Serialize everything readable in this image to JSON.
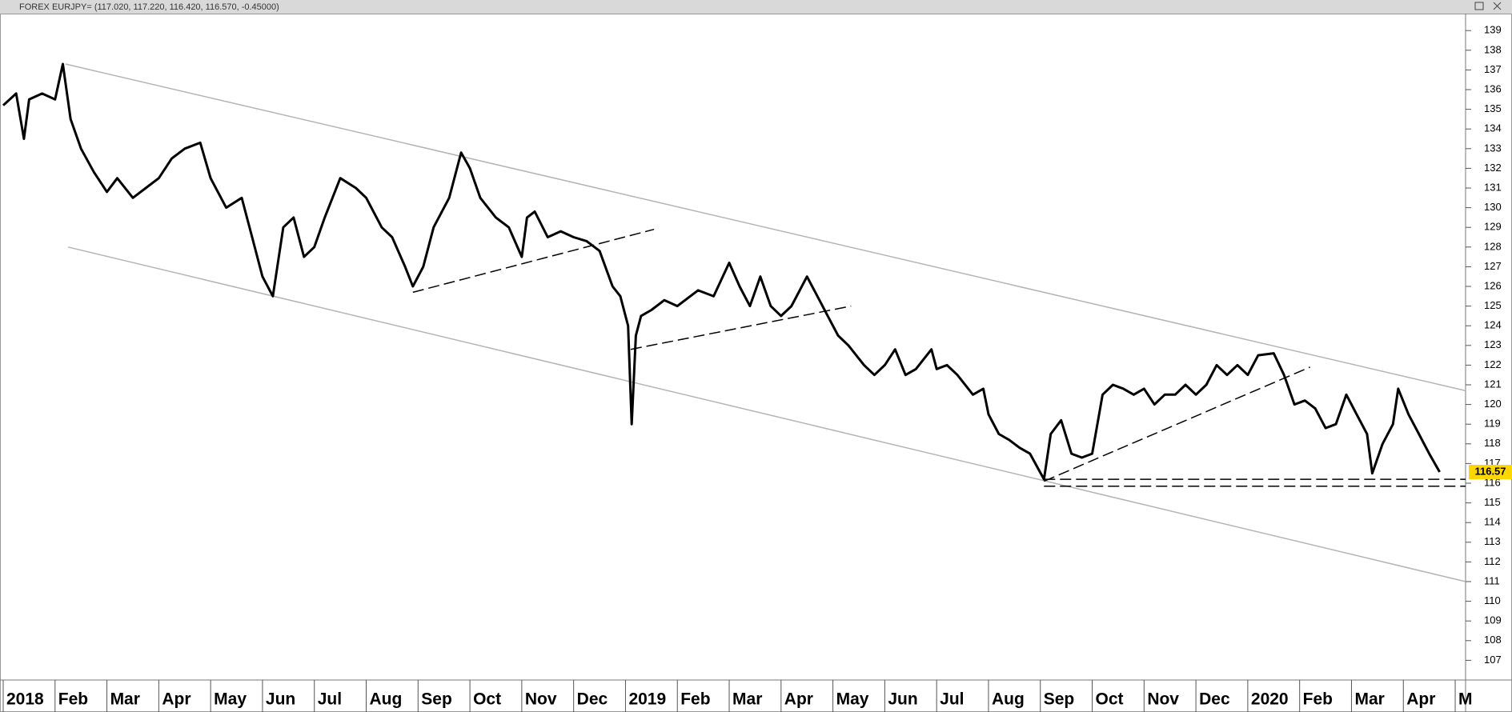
{
  "chart_data": {
    "type": "line",
    "title": "FOREX EURJPY= (117.020, 117.220, 116.420, 116.570, -0.45000)",
    "x": [
      0,
      0.25,
      0.4,
      0.5,
      0.75,
      1.0,
      1.15,
      1.3,
      1.5,
      1.75,
      2.0,
      2.2,
      2.5,
      2.75,
      3.0,
      3.25,
      3.5,
      3.8,
      4.0,
      4.3,
      4.6,
      4.8,
      5.0,
      5.2,
      5.4,
      5.6,
      5.8,
      6.0,
      6.2,
      6.5,
      6.8,
      7.0,
      7.3,
      7.5,
      7.75,
      7.9,
      8.1,
      8.3,
      8.5,
      8.6,
      8.83,
      9.0,
      9.2,
      9.5,
      9.75,
      10.0,
      10.1,
      10.25,
      10.5,
      10.75,
      11.0,
      11.25,
      11.5,
      11.75,
      11.9,
      12.05,
      12.12,
      12.2,
      12.3,
      12.5,
      12.75,
      13.0,
      13.4,
      13.7,
      14.0,
      14.2,
      14.4,
      14.6,
      14.8,
      15.0,
      15.2,
      15.5,
      15.7,
      15.9,
      16.1,
      16.3,
      16.6,
      16.8,
      17.0,
      17.2,
      17.4,
      17.6,
      17.9,
      18.0,
      18.2,
      18.4,
      18.7,
      18.9,
      19.0,
      19.2,
      19.4,
      19.6,
      19.8,
      20.07,
      20.2,
      20.4,
      20.6,
      20.8,
      21.0,
      21.2,
      21.4,
      21.6,
      21.8,
      22.0,
      22.2,
      22.4,
      22.6,
      22.8,
      23.0,
      23.2,
      23.4,
      23.6,
      23.8,
      24.0,
      24.2,
      24.5,
      24.7,
      24.9,
      25.1,
      25.3,
      25.5,
      25.7,
      25.9,
      26.1,
      26.3,
      26.4,
      26.6,
      26.8,
      26.9,
      27.1,
      27.3,
      27.5,
      27.7
    ],
    "series": [
      {
        "color": "#000000",
        "values": [
          135.2,
          135.8,
          133.5,
          135.5,
          135.8,
          135.5,
          137.3,
          134.5,
          133.0,
          131.8,
          130.8,
          131.5,
          130.5,
          131.0,
          131.5,
          132.5,
          133.0,
          133.3,
          131.5,
          130.0,
          130.5,
          128.5,
          126.5,
          125.5,
          129.0,
          129.5,
          127.5,
          128.0,
          129.5,
          131.5,
          131.0,
          130.5,
          129.0,
          128.5,
          127.0,
          126.0,
          127.0,
          129.0,
          130.0,
          130.5,
          132.8,
          132.0,
          130.5,
          129.5,
          129.0,
          127.5,
          129.5,
          129.8,
          128.5,
          128.8,
          128.5,
          128.3,
          127.8,
          126.0,
          125.5,
          124.0,
          119.0,
          123.5,
          124.5,
          124.8,
          125.3,
          125.0,
          125.8,
          125.5,
          127.2,
          126.0,
          125.0,
          126.5,
          125.0,
          124.5,
          125.0,
          126.5,
          125.5,
          124.5,
          123.5,
          123.0,
          122.0,
          121.5,
          122.0,
          122.8,
          121.5,
          121.8,
          122.8,
          121.8,
          122.0,
          121.5,
          120.5,
          120.8,
          119.5,
          118.5,
          118.2,
          117.8,
          117.5,
          116.2,
          118.5,
          119.2,
          117.5,
          117.3,
          117.5,
          120.5,
          121.0,
          120.8,
          120.5,
          120.8,
          120.0,
          120.5,
          120.5,
          121.0,
          120.5,
          121.0,
          122.0,
          121.5,
          122.0,
          121.5,
          122.5,
          122.6,
          121.5,
          120.0,
          120.2,
          119.8,
          118.8,
          119.0,
          120.5,
          119.5,
          118.5,
          116.5,
          118.0,
          119.0,
          120.8,
          119.5,
          118.5,
          117.5,
          116.57
        ]
      }
    ],
    "last_value_color": "#ffd700",
    "xlim": [
      0,
      28.2
    ],
    "xticks": [
      {
        "value": 0,
        "label": "2018"
      },
      {
        "value": 1,
        "label": "Feb"
      },
      {
        "value": 2,
        "label": "Mar"
      },
      {
        "value": 3,
        "label": "Apr"
      },
      {
        "value": 4,
        "label": "May"
      },
      {
        "value": 5,
        "label": "Jun"
      },
      {
        "value": 6,
        "label": "Jul"
      },
      {
        "value": 7,
        "label": "Aug"
      },
      {
        "value": 8,
        "label": "Sep"
      },
      {
        "value": 9,
        "label": "Oct"
      },
      {
        "value": 10,
        "label": "Nov"
      },
      {
        "value": 11,
        "label": "Dec"
      },
      {
        "value": 12,
        "label": "2019"
      },
      {
        "value": 13,
        "label": "Feb"
      },
      {
        "value": 14,
        "label": "Mar"
      },
      {
        "value": 15,
        "label": "Apr"
      },
      {
        "value": 16,
        "label": "May"
      },
      {
        "value": 17,
        "label": "Jun"
      },
      {
        "value": 18,
        "label": "Jul"
      },
      {
        "value": 19,
        "label": "Aug"
      },
      {
        "value": 20,
        "label": "Sep"
      },
      {
        "value": 21,
        "label": "Oct"
      },
      {
        "value": 22,
        "label": "Nov"
      },
      {
        "value": 23,
        "label": "Dec"
      },
      {
        "value": 24,
        "label": "2020"
      },
      {
        "value": 25,
        "label": "Feb"
      },
      {
        "value": 26,
        "label": "Mar"
      },
      {
        "value": 27,
        "label": "Apr"
      },
      {
        "value": 28,
        "label": "M"
      }
    ],
    "ylim": [
      106,
      139.7
    ],
    "yticks": [
      107,
      108,
      109,
      110,
      111,
      112,
      113,
      114,
      115,
      116,
      117,
      118,
      119,
      120,
      121,
      122,
      123,
      124,
      125,
      126,
      127,
      128,
      129,
      130,
      131,
      132,
      133,
      134,
      135,
      136,
      137,
      138,
      139
    ],
    "trendlines": [
      {
        "x": [
          1.2,
          28.2
        ],
        "y": [
          137.3,
          120.7
        ],
        "style": "solid",
        "color": "#b4b4b4"
      },
      {
        "x": [
          1.25,
          28.2
        ],
        "y": [
          128.0,
          111.0
        ],
        "style": "solid",
        "color": "#b4b4b4"
      },
      {
        "x": [
          7.9,
          12.55
        ],
        "y": [
          125.7,
          128.9
        ],
        "style": "dashed",
        "color": "#000000"
      },
      {
        "x": [
          12.1,
          16.35
        ],
        "y": [
          122.8,
          125.0
        ],
        "style": "dashed",
        "color": "#000000"
      },
      {
        "x": [
          20.07,
          25.2
        ],
        "y": [
          116.1,
          121.9
        ],
        "style": "dashed",
        "color": "#000000"
      },
      {
        "x": [
          20.07,
          28.2
        ],
        "y": [
          116.2,
          116.2
        ],
        "style": "dashed",
        "color": "#000000"
      },
      {
        "x": [
          20.07,
          28.2
        ],
        "y": [
          115.85,
          115.85
        ],
        "style": "dashed",
        "color": "#000000"
      }
    ]
  }
}
